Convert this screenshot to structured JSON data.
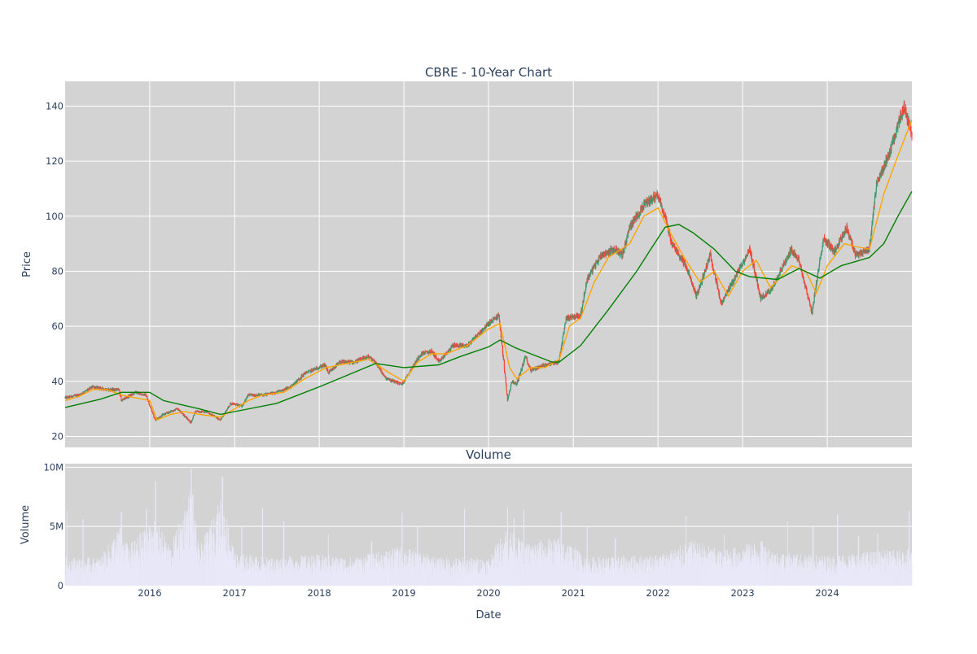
{
  "chart_data": [
    {
      "type": "candlestick",
      "title": "CBRE - 10-Year Chart",
      "xlabel": "",
      "ylabel": "Price",
      "xlim": [
        "2015-01-01",
        "2024-12-31"
      ],
      "ylim": [
        16,
        149
      ],
      "y_ticks": [
        20,
        40,
        60,
        80,
        100,
        120,
        140
      ],
      "y_tick_labels": [
        "20",
        "40",
        "60",
        "80",
        "100",
        "120",
        "140"
      ],
      "grid": true,
      "colors": {
        "increasing": "#3d9970",
        "decreasing": "#ff4136",
        "plot_bg": "#d3d3d3",
        "grid": "#ffffff"
      },
      "price_path": [
        [
          "2015-01-01",
          34
        ],
        [
          "2015-03-01",
          35
        ],
        [
          "2015-05-01",
          38
        ],
        [
          "2015-07-01",
          37
        ],
        [
          "2015-08-20",
          37
        ],
        [
          "2015-09-01",
          33
        ],
        [
          "2015-11-01",
          36
        ],
        [
          "2015-12-15",
          35
        ],
        [
          "2016-01-25",
          26
        ],
        [
          "2016-03-01",
          28
        ],
        [
          "2016-05-01",
          30
        ],
        [
          "2016-06-27",
          25
        ],
        [
          "2016-07-15",
          29
        ],
        [
          "2016-09-01",
          29
        ],
        [
          "2016-11-01",
          26
        ],
        [
          "2016-12-15",
          32
        ],
        [
          "2017-02-01",
          31
        ],
        [
          "2017-03-01",
          35
        ],
        [
          "2017-05-01",
          35
        ],
        [
          "2017-07-01",
          36
        ],
        [
          "2017-09-01",
          38
        ],
        [
          "2017-11-01",
          43
        ],
        [
          "2018-01-26",
          46
        ],
        [
          "2018-02-10",
          43
        ],
        [
          "2018-04-01",
          47
        ],
        [
          "2018-06-01",
          47
        ],
        [
          "2018-08-01",
          49
        ],
        [
          "2018-09-01",
          47
        ],
        [
          "2018-10-15",
          41
        ],
        [
          "2018-12-24",
          39
        ],
        [
          "2019-01-15",
          42
        ],
        [
          "2019-03-15",
          50
        ],
        [
          "2019-05-01",
          51
        ],
        [
          "2019-06-01",
          47
        ],
        [
          "2019-08-01",
          53
        ],
        [
          "2019-10-01",
          53
        ],
        [
          "2020-01-01",
          61
        ],
        [
          "2020-02-15",
          64
        ],
        [
          "2020-03-23",
          33
        ],
        [
          "2020-04-10",
          40
        ],
        [
          "2020-05-01",
          39
        ],
        [
          "2020-06-08",
          49
        ],
        [
          "2020-07-01",
          44
        ],
        [
          "2020-09-01",
          46
        ],
        [
          "2020-10-30",
          47
        ],
        [
          "2020-12-01",
          63
        ],
        [
          "2021-02-01",
          64
        ],
        [
          "2021-03-01",
          77
        ],
        [
          "2021-05-01",
          86
        ],
        [
          "2021-07-01",
          88
        ],
        [
          "2021-08-01",
          86
        ],
        [
          "2021-09-01",
          96
        ],
        [
          "2021-11-01",
          104
        ],
        [
          "2021-12-31",
          108
        ],
        [
          "2022-02-01",
          100
        ],
        [
          "2022-03-01",
          90
        ],
        [
          "2022-05-01",
          82
        ],
        [
          "2022-06-16",
          71
        ],
        [
          "2022-08-15",
          86
        ],
        [
          "2022-10-01",
          68
        ],
        [
          "2022-12-01",
          78
        ],
        [
          "2023-02-01",
          88
        ],
        [
          "2023-03-20",
          70
        ],
        [
          "2023-05-01",
          73
        ],
        [
          "2023-07-31",
          88
        ],
        [
          "2023-09-01",
          84
        ],
        [
          "2023-10-27",
          65
        ],
        [
          "2023-12-15",
          92
        ],
        [
          "2024-02-01",
          87
        ],
        [
          "2024-03-25",
          96
        ],
        [
          "2024-05-01",
          86
        ],
        [
          "2024-07-01",
          88
        ],
        [
          "2024-08-01",
          112
        ],
        [
          "2024-10-01",
          124
        ],
        [
          "2024-11-27",
          140
        ],
        [
          "2024-12-31",
          130
        ]
      ],
      "series": [
        {
          "kind": "moving-average",
          "color": "#ffa500",
          "points": [
            [
              "2015-01-01",
              33
            ],
            [
              "2015-03-01",
              34.5
            ],
            [
              "2015-05-01",
              37
            ],
            [
              "2015-07-01",
              37
            ],
            [
              "2015-09-01",
              35
            ],
            [
              "2015-11-01",
              34
            ],
            [
              "2016-01-01",
              33
            ],
            [
              "2016-02-01",
              26
            ],
            [
              "2016-04-01",
              28
            ],
            [
              "2016-06-01",
              29
            ],
            [
              "2016-08-01",
              28
            ],
            [
              "2016-11-01",
              27
            ],
            [
              "2017-01-01",
              30
            ],
            [
              "2017-03-01",
              33
            ],
            [
              "2017-05-01",
              35
            ],
            [
              "2017-08-01",
              36
            ],
            [
              "2017-11-01",
              41
            ],
            [
              "2018-02-01",
              45
            ],
            [
              "2018-05-01",
              46.5
            ],
            [
              "2018-08-01",
              48
            ],
            [
              "2018-11-01",
              43
            ],
            [
              "2019-01-01",
              40
            ],
            [
              "2019-03-01",
              47
            ],
            [
              "2019-05-01",
              50
            ],
            [
              "2019-07-01",
              50
            ],
            [
              "2019-10-01",
              53
            ],
            [
              "2020-01-01",
              59
            ],
            [
              "2020-02-20",
              61
            ],
            [
              "2020-04-01",
              45
            ],
            [
              "2020-05-01",
              41
            ],
            [
              "2020-07-01",
              45
            ],
            [
              "2020-09-01",
              45
            ],
            [
              "2020-11-01",
              48
            ],
            [
              "2020-12-15",
              60
            ],
            [
              "2021-02-01",
              63
            ],
            [
              "2021-04-01",
              76
            ],
            [
              "2021-06-01",
              85
            ],
            [
              "2021-09-01",
              90
            ],
            [
              "2021-11-01",
              100
            ],
            [
              "2022-01-01",
              103
            ],
            [
              "2022-03-01",
              93
            ],
            [
              "2022-05-01",
              84
            ],
            [
              "2022-07-01",
              76
            ],
            [
              "2022-09-01",
              80
            ],
            [
              "2022-11-01",
              71
            ],
            [
              "2023-01-01",
              80
            ],
            [
              "2023-03-01",
              84
            ],
            [
              "2023-05-01",
              74
            ],
            [
              "2023-08-01",
              82
            ],
            [
              "2023-10-01",
              80
            ],
            [
              "2023-11-15",
              72
            ],
            [
              "2024-01-01",
              82
            ],
            [
              "2024-03-15",
              90
            ],
            [
              "2024-05-01",
              89
            ],
            [
              "2024-07-01",
              88
            ],
            [
              "2024-09-01",
              108
            ],
            [
              "2024-11-01",
              122
            ],
            [
              "2024-12-31",
              135
            ]
          ]
        },
        {
          "kind": "moving-average",
          "color": "#008000",
          "points": [
            [
              "2015-01-01",
              30.5
            ],
            [
              "2015-06-01",
              33.5
            ],
            [
              "2015-09-01",
              36
            ],
            [
              "2015-12-31",
              36
            ],
            [
              "2016-03-01",
              33
            ],
            [
              "2016-08-01",
              30
            ],
            [
              "2016-11-01",
              28
            ],
            [
              "2017-01-01",
              29
            ],
            [
              "2017-07-01",
              32
            ],
            [
              "2018-01-01",
              38
            ],
            [
              "2018-09-01",
              46.5
            ],
            [
              "2019-01-01",
              45
            ],
            [
              "2019-06-01",
              46
            ],
            [
              "2019-09-01",
              49
            ],
            [
              "2020-01-01",
              52.5
            ],
            [
              "2020-02-20",
              55
            ],
            [
              "2020-05-01",
              52
            ],
            [
              "2020-10-01",
              47
            ],
            [
              "2020-11-01",
              47
            ],
            [
              "2021-02-01",
              53
            ],
            [
              "2021-06-01",
              66
            ],
            [
              "2021-10-01",
              80
            ],
            [
              "2021-12-01",
              88
            ],
            [
              "2022-02-01",
              96
            ],
            [
              "2022-04-01",
              97
            ],
            [
              "2022-06-01",
              94
            ],
            [
              "2022-09-01",
              88
            ],
            [
              "2022-12-01",
              80
            ],
            [
              "2023-02-01",
              78
            ],
            [
              "2023-06-01",
              77
            ],
            [
              "2023-09-01",
              81
            ],
            [
              "2023-12-01",
              77.5
            ],
            [
              "2024-03-01",
              82
            ],
            [
              "2024-07-01",
              85
            ],
            [
              "2024-09-01",
              90
            ],
            [
              "2024-11-01",
              100
            ],
            [
              "2024-12-31",
              109
            ]
          ]
        }
      ]
    },
    {
      "type": "bar",
      "title": "Volume",
      "xlabel": "Date",
      "ylabel": "Volume",
      "xlim": [
        "2015-01-01",
        "2024-12-31"
      ],
      "ylim": [
        0,
        10300000
      ],
      "y_ticks": [
        0,
        5000000,
        10000000
      ],
      "y_tick_labels": [
        "0",
        "5M",
        "10M"
      ],
      "x_ticks": [
        "2016-01-01",
        "2017-01-01",
        "2018-01-01",
        "2019-01-01",
        "2020-01-01",
        "2021-01-01",
        "2022-01-01",
        "2023-01-01",
        "2024-01-01"
      ],
      "x_tick_labels": [
        "2016",
        "2017",
        "2018",
        "2019",
        "2020",
        "2021",
        "2022",
        "2023",
        "2024"
      ],
      "grid": true,
      "colors": {
        "bar": "#e8e8f8",
        "plot_bg": "#d3d3d3",
        "grid": "#ffffff"
      },
      "volume_envelope": [
        [
          "2015-01-01",
          2000000
        ],
        [
          "2015-06-01",
          2000000
        ],
        [
          "2015-08-25",
          4200000
        ],
        [
          "2015-10-01",
          2800000
        ],
        [
          "2016-01-20",
          4800000
        ],
        [
          "2016-04-01",
          2800000
        ],
        [
          "2016-06-27",
          7000000
        ],
        [
          "2016-08-01",
          2600000
        ],
        [
          "2016-11-10",
          6500000
        ],
        [
          "2017-01-01",
          2300000
        ],
        [
          "2017-06-01",
          2000000
        ],
        [
          "2018-01-01",
          2200000
        ],
        [
          "2018-06-01",
          2000000
        ],
        [
          "2018-12-20",
          2800000
        ],
        [
          "2019-06-01",
          2000000
        ],
        [
          "2020-01-01",
          2000000
        ],
        [
          "2020-03-20",
          4200000
        ],
        [
          "2020-06-01",
          3000000
        ],
        [
          "2020-11-10",
          3500000
        ],
        [
          "2021-03-01",
          2000000
        ],
        [
          "2022-01-01",
          2200000
        ],
        [
          "2022-06-01",
          3200000
        ],
        [
          "2022-10-01",
          2500000
        ],
        [
          "2023-03-20",
          3200000
        ],
        [
          "2023-06-01",
          2400000
        ],
        [
          "2024-01-01",
          2100000
        ],
        [
          "2024-06-01",
          2400000
        ],
        [
          "2024-12-31",
          2600000
        ]
      ],
      "volume_peaks": [
        [
          "2015-01-10",
          6300000
        ],
        [
          "2015-03-20",
          5600000
        ],
        [
          "2015-09-01",
          6200000
        ],
        [
          "2015-12-18",
          6500000
        ],
        [
          "2016-01-26",
          8800000
        ],
        [
          "2016-06-27",
          9900000
        ],
        [
          "2016-07-05",
          7700000
        ],
        [
          "2016-11-10",
          9200000
        ],
        [
          "2017-02-01",
          5000000
        ],
        [
          "2017-05-01",
          6600000
        ],
        [
          "2017-08-01",
          5400000
        ],
        [
          "2018-02-10",
          4300000
        ],
        [
          "2018-08-15",
          3700000
        ],
        [
          "2018-12-24",
          6200000
        ],
        [
          "2019-03-01",
          5000000
        ],
        [
          "2019-09-20",
          6500000
        ],
        [
          "2020-03-23",
          6600000
        ],
        [
          "2020-04-20",
          5700000
        ],
        [
          "2020-06-01",
          6400000
        ],
        [
          "2020-11-10",
          6200000
        ],
        [
          "2021-03-01",
          5000000
        ],
        [
          "2021-07-01",
          4000000
        ],
        [
          "2022-05-01",
          5900000
        ],
        [
          "2022-10-15",
          4300000
        ],
        [
          "2023-03-25",
          3700000
        ],
        [
          "2023-07-15",
          5400000
        ],
        [
          "2023-11-01",
          5000000
        ],
        [
          "2024-02-15",
          6000000
        ],
        [
          "2024-05-15",
          4200000
        ],
        [
          "2024-08-05",
          4400000
        ],
        [
          "2024-12-20",
          6300000
        ]
      ]
    }
  ]
}
